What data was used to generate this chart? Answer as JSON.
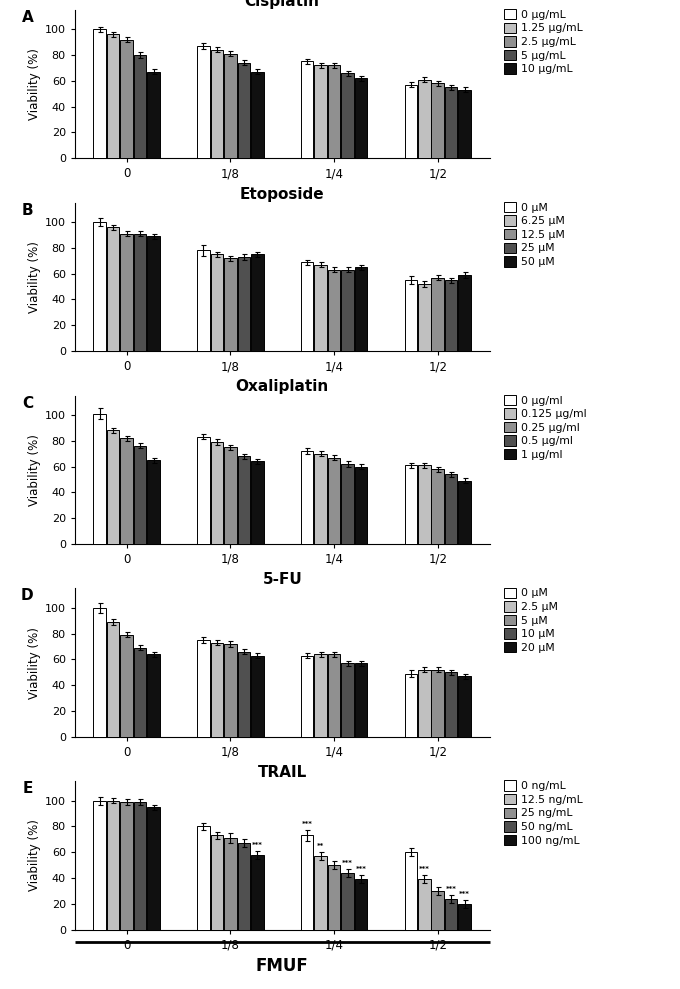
{
  "panels": [
    {
      "label": "A",
      "title": "Cisplatin",
      "legend_labels": [
        "0 μg/mL",
        "1.25 μg/mL",
        "2.5 μg/mL",
        "5 μg/mL",
        "10 μg/mL"
      ],
      "groups": [
        "0",
        "1/8",
        "1/4",
        "1/2"
      ],
      "values": [
        [
          100,
          96,
          92,
          80,
          67
        ],
        [
          87,
          84,
          81,
          74,
          67
        ],
        [
          75,
          72,
          72,
          66,
          62
        ],
        [
          57,
          61,
          58,
          55,
          53
        ]
      ],
      "errors": [
        [
          2,
          2,
          2,
          2,
          2
        ],
        [
          2,
          2,
          2,
          2,
          2
        ],
        [
          2,
          2,
          2,
          2,
          2
        ],
        [
          2,
          2,
          2,
          2,
          2
        ]
      ],
      "annotations": [
        [],
        [],
        [],
        []
      ],
      "ylim": [
        0,
        115
      ],
      "yticks": [
        0,
        20,
        40,
        60,
        80,
        100
      ]
    },
    {
      "label": "B",
      "title": "Etoposide",
      "legend_labels": [
        "0 μM",
        "6.25 μM",
        "12.5 μM",
        "25 μM",
        "50 μM"
      ],
      "groups": [
        "0",
        "1/8",
        "1/4",
        "1/2"
      ],
      "values": [
        [
          100,
          96,
          91,
          91,
          89
        ],
        [
          78,
          75,
          72,
          73,
          75
        ],
        [
          69,
          67,
          63,
          63,
          65
        ],
        [
          55,
          52,
          57,
          55,
          59
        ]
      ],
      "errors": [
        [
          3,
          2,
          2,
          2,
          2
        ],
        [
          4,
          2,
          2,
          2,
          2
        ],
        [
          2,
          2,
          2,
          2,
          2
        ],
        [
          3,
          2,
          2,
          2,
          2
        ]
      ],
      "annotations": [
        [],
        [],
        [],
        []
      ],
      "ylim": [
        0,
        115
      ],
      "yticks": [
        0,
        20,
        40,
        60,
        80,
        100
      ]
    },
    {
      "label": "C",
      "title": "Oxaliplatin",
      "legend_labels": [
        "0 μg/ml",
        "0.125 μg/ml",
        "0.25 μg/ml",
        "0.5 μg/ml",
        "1 μg/ml"
      ],
      "groups": [
        "0",
        "1/8",
        "1/4",
        "1/2"
      ],
      "values": [
        [
          101,
          88,
          82,
          76,
          65
        ],
        [
          83,
          79,
          75,
          68,
          64
        ],
        [
          72,
          70,
          67,
          62,
          60
        ],
        [
          61,
          61,
          58,
          54,
          49
        ]
      ],
      "errors": [
        [
          4,
          2,
          2,
          2,
          2
        ],
        [
          2,
          2,
          2,
          2,
          2
        ],
        [
          2,
          2,
          2,
          2,
          2
        ],
        [
          2,
          2,
          2,
          2,
          2
        ]
      ],
      "annotations": [
        [],
        [],
        [],
        []
      ],
      "ylim": [
        0,
        115
      ],
      "yticks": [
        0,
        20,
        40,
        60,
        80,
        100
      ]
    },
    {
      "label": "D",
      "title": "5-FU",
      "legend_labels": [
        "0 μM",
        "2.5 μM",
        "5 μM",
        "10 μM",
        "20 μM"
      ],
      "groups": [
        "0",
        "1/8",
        "1/4",
        "1/2"
      ],
      "values": [
        [
          100,
          89,
          79,
          69,
          64
        ],
        [
          75,
          73,
          72,
          66,
          63
        ],
        [
          63,
          64,
          64,
          57,
          57
        ],
        [
          49,
          52,
          52,
          50,
          47
        ]
      ],
      "errors": [
        [
          4,
          2,
          2,
          2,
          2
        ],
        [
          2,
          2,
          2,
          2,
          2
        ],
        [
          2,
          2,
          2,
          2,
          2
        ],
        [
          3,
          2,
          2,
          2,
          2
        ]
      ],
      "annotations": [
        [],
        [],
        [],
        []
      ],
      "ylim": [
        0,
        115
      ],
      "yticks": [
        0,
        20,
        40,
        60,
        80,
        100
      ]
    },
    {
      "label": "E",
      "title": "TRAIL",
      "legend_labels": [
        "0 ng/mL",
        "12.5 ng/mL",
        "25 ng/mL",
        "50 ng/mL",
        "100 ng/mL"
      ],
      "groups": [
        "0",
        "1/8",
        "1/4",
        "1/2"
      ],
      "values": [
        [
          100,
          100,
          99,
          99,
          95
        ],
        [
          80,
          73,
          71,
          67,
          58
        ],
        [
          73,
          57,
          50,
          44,
          39
        ],
        [
          60,
          39,
          30,
          24,
          20
        ]
      ],
      "errors": [
        [
          3,
          2,
          2,
          2,
          2
        ],
        [
          3,
          3,
          4,
          3,
          3
        ],
        [
          4,
          3,
          3,
          3,
          3
        ],
        [
          3,
          3,
          3,
          3,
          3
        ]
      ],
      "annotations": [
        [],
        [
          "",
          "",
          "",
          "",
          "***"
        ],
        [
          "***",
          "**",
          "",
          "***",
          "***"
        ],
        [
          "",
          "***",
          "",
          "***",
          "***"
        ]
      ],
      "ylim": [
        0,
        115
      ],
      "yticks": [
        0,
        20,
        40,
        60,
        80,
        100
      ]
    }
  ],
  "bar_colors": [
    "#ffffff",
    "#c0c0c0",
    "#909090",
    "#505050",
    "#101010"
  ],
  "bar_edge_color": "#000000",
  "ylabel": "Viability (%)",
  "xlabel_bottom": "FMUF",
  "figsize": [
    6.8,
    9.89
  ],
  "dpi": 100
}
